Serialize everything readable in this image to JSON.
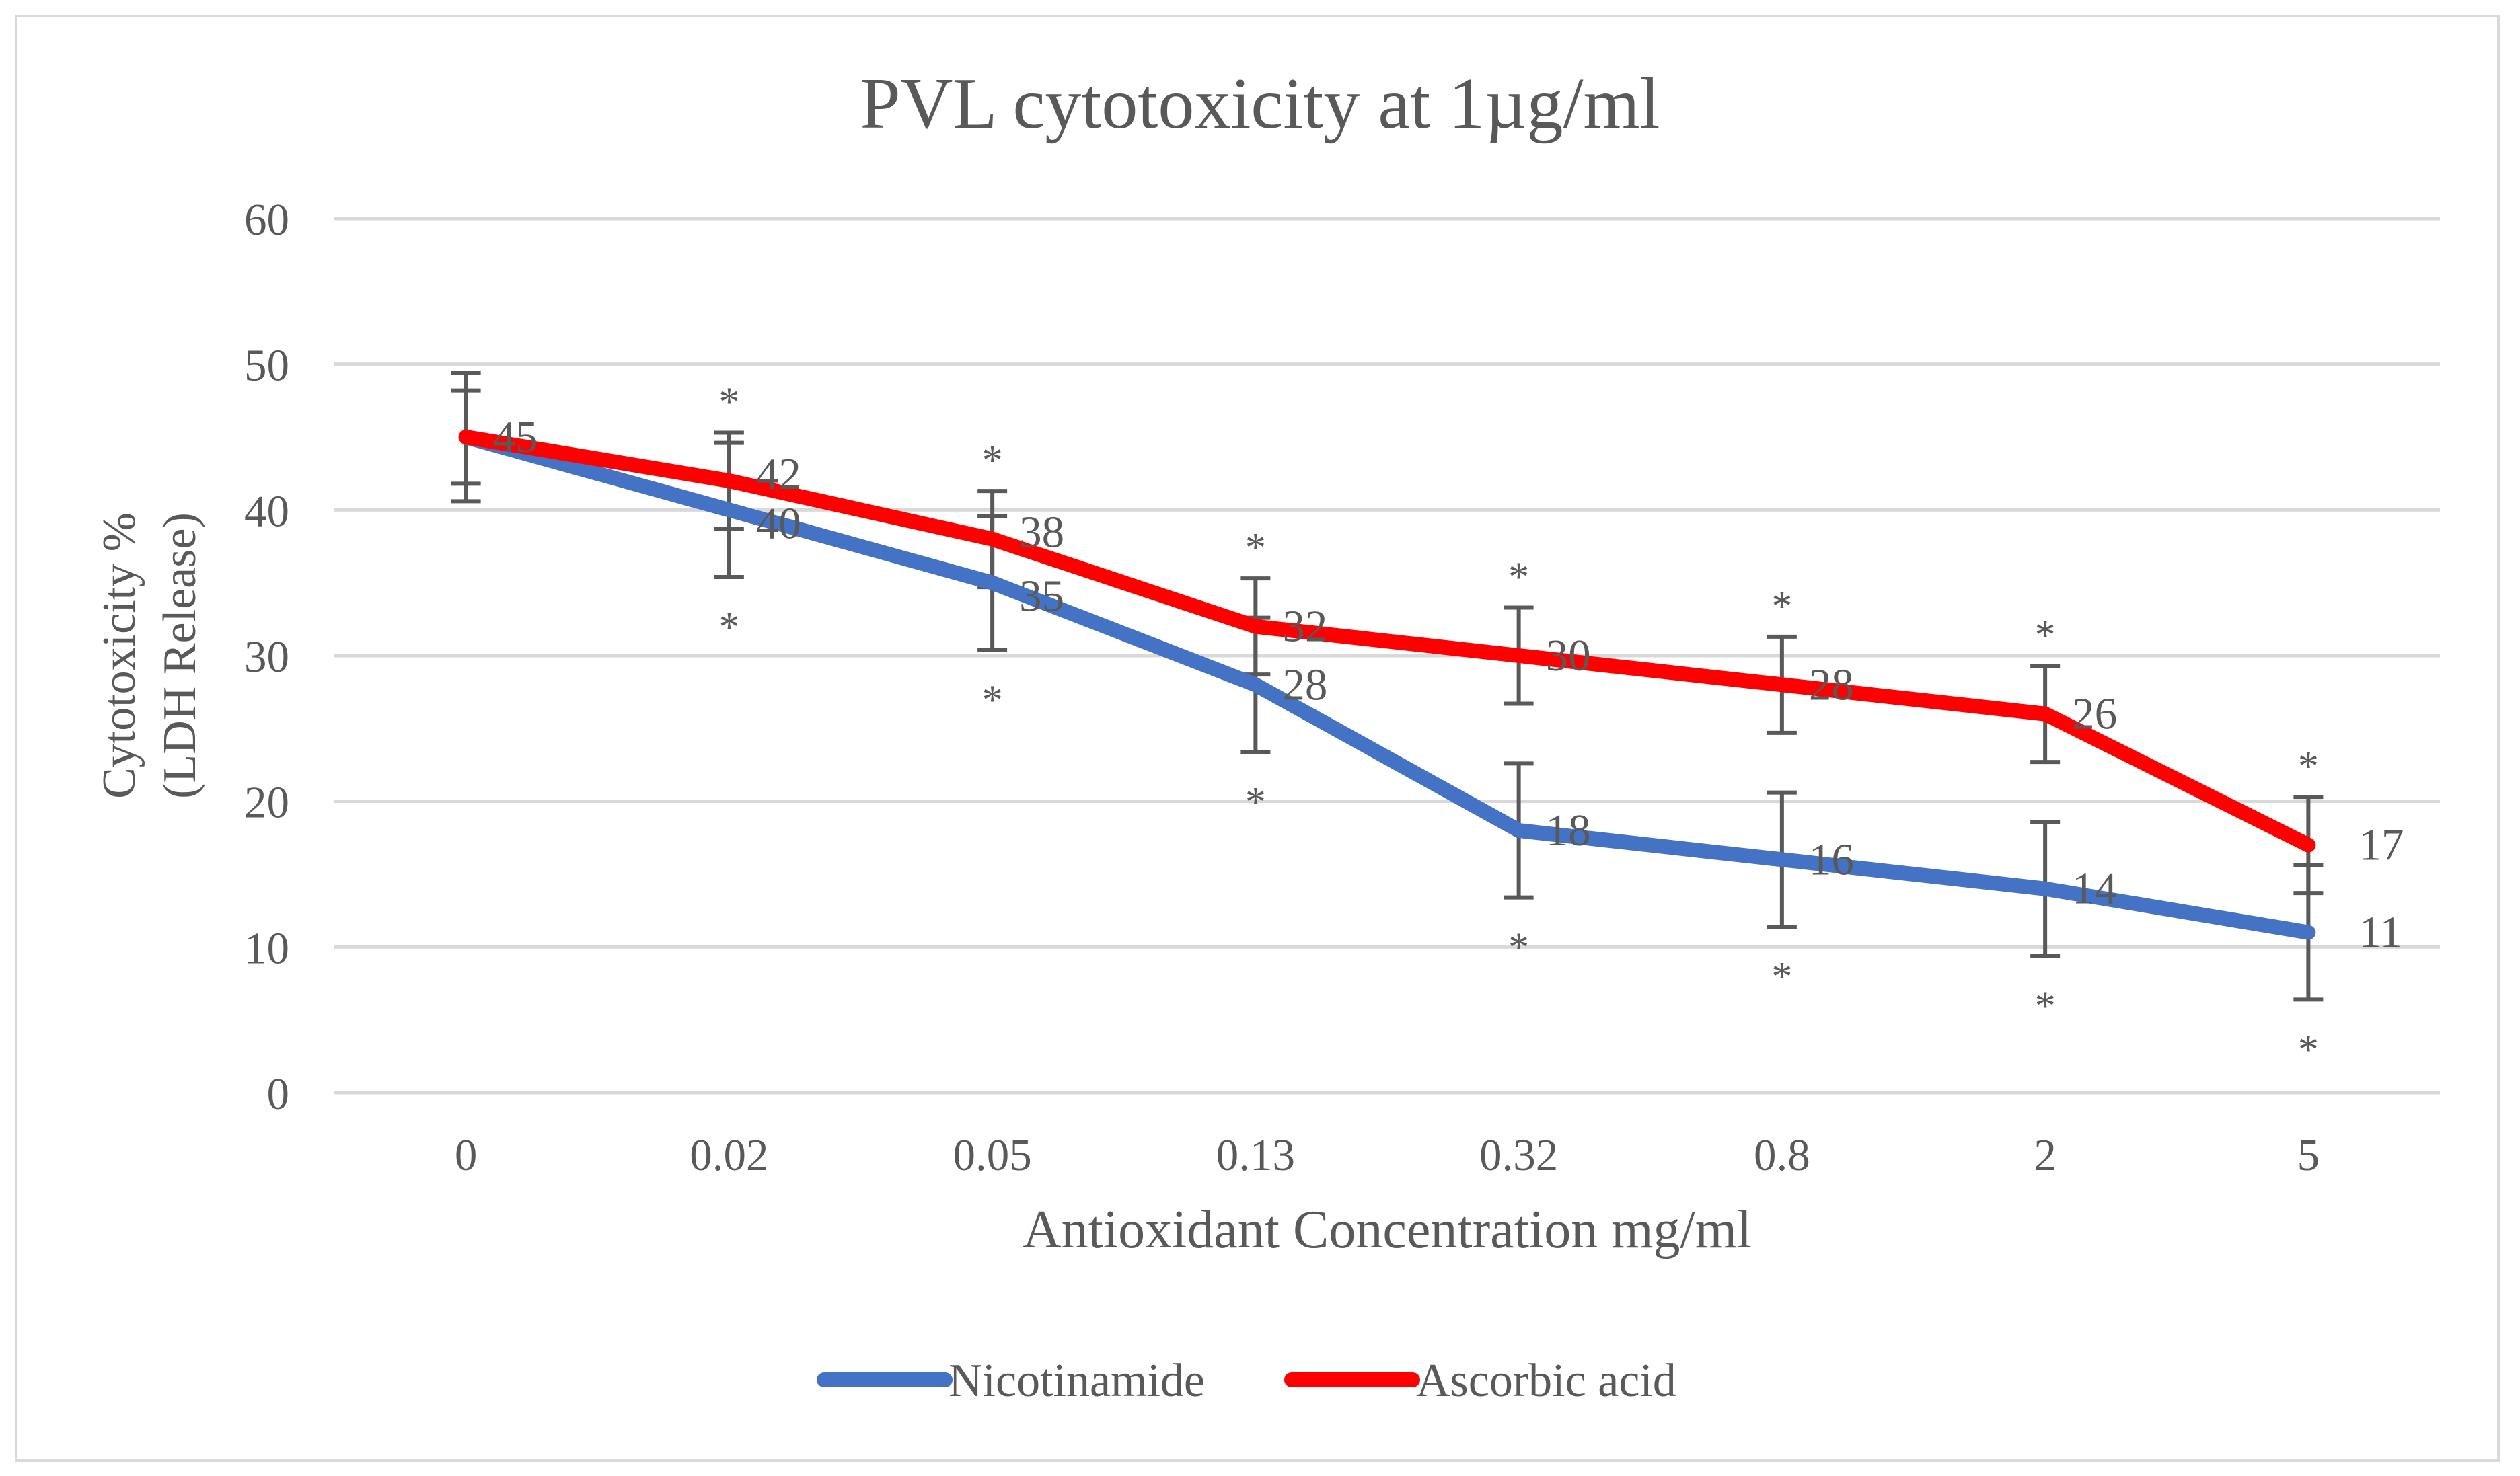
{
  "chart_data": {
    "type": "line",
    "title": "PVL cytotoxicity at 1µg/ml",
    "xlabel": "Antioxidant Concentration mg/ml",
    "ylabel_lines": [
      "Cytotoxicity %",
      "(LDH Release)"
    ],
    "categories": [
      "0",
      "0.02",
      "0.05",
      "0.13",
      "0.32",
      "0.8",
      "2",
      "5"
    ],
    "ylim": [
      0,
      60
    ],
    "yticks": [
      0,
      10,
      20,
      30,
      40,
      50,
      60
    ],
    "grid": true,
    "legend": "bottom",
    "significance_marker": "*",
    "series": [
      {
        "name": "Nicotinamide",
        "color": "#4472C4",
        "values": [
          45,
          40,
          35,
          28,
          18,
          16,
          14,
          11
        ],
        "error": [
          3.2,
          4.6,
          4.6,
          4.6,
          4.6,
          4.6,
          4.6,
          4.6
        ],
        "significant": [
          false,
          true,
          true,
          true,
          true,
          true,
          true,
          true
        ],
        "marker_side": "below"
      },
      {
        "name": "Ascorbic acid",
        "color": "#FF0000",
        "values": [
          45,
          42,
          38,
          32,
          30,
          28,
          26,
          17
        ],
        "error": [
          4.4,
          3.3,
          3.3,
          3.3,
          3.3,
          3.3,
          3.3,
          3.3
        ],
        "significant": [
          false,
          true,
          true,
          true,
          true,
          true,
          true,
          true
        ],
        "marker_side": "above"
      }
    ]
  }
}
